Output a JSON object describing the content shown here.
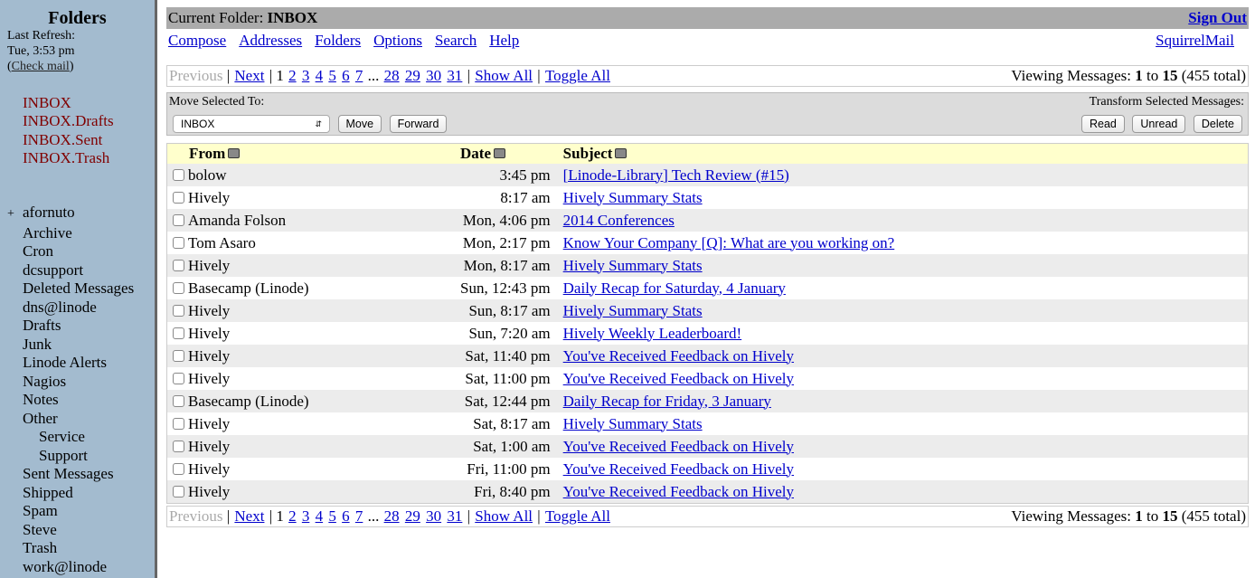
{
  "sidebar": {
    "title": "Folders",
    "last_refresh_label": "Last Refresh:",
    "last_refresh": "Tue, 3:53 pm",
    "check_mail": "Check mail",
    "special": [
      "INBOX",
      "INBOX.Drafts",
      "INBOX.Sent",
      "INBOX.Trash"
    ],
    "expander": "+",
    "folders": [
      {
        "label": "afornuto",
        "level": 0
      },
      {
        "label": "Archive",
        "level": 1
      },
      {
        "label": "Cron",
        "level": 1
      },
      {
        "label": "dcsupport",
        "level": 1
      },
      {
        "label": "Deleted Messages",
        "level": 1
      },
      {
        "label": "dns@linode",
        "level": 1
      },
      {
        "label": "Drafts",
        "level": 1
      },
      {
        "label": "Junk",
        "level": 1
      },
      {
        "label": "Linode Alerts",
        "level": 1
      },
      {
        "label": "Nagios",
        "level": 1
      },
      {
        "label": "Notes",
        "level": 1
      },
      {
        "label": "Other",
        "level": 1
      },
      {
        "label": "Service",
        "level": 2
      },
      {
        "label": "Support",
        "level": 2
      },
      {
        "label": "Sent Messages",
        "level": 1
      },
      {
        "label": "Shipped",
        "level": 1
      },
      {
        "label": "Spam",
        "level": 1
      },
      {
        "label": "Steve",
        "level": 1
      },
      {
        "label": "Trash",
        "level": 1
      },
      {
        "label": "work@linode",
        "level": 1
      }
    ]
  },
  "header": {
    "current_label": "Current Folder:",
    "current": "INBOX",
    "sign_out": "Sign Out",
    "brand": "SquirrelMail",
    "nav": [
      "Compose",
      "Addresses",
      "Folders",
      "Options",
      "Search",
      "Help"
    ]
  },
  "paging": {
    "previous": "Previous",
    "next": "Next",
    "current": "1",
    "pages": [
      "2",
      "3",
      "4",
      "5",
      "6",
      "7"
    ],
    "ellipsis": "...",
    "tail": [
      "28",
      "29",
      "30",
      "31"
    ],
    "show_all": "Show All",
    "toggle_all": "Toggle All",
    "viewing_label": "Viewing Messages:",
    "from": "1",
    "to_label": "to",
    "to": "15",
    "total": "(455 total)"
  },
  "tools": {
    "move_label": "Move Selected To:",
    "move_target": "INBOX",
    "move": "Move",
    "forward": "Forward",
    "transform_label": "Transform Selected Messages:",
    "read": "Read",
    "unread": "Unread",
    "delete": "Delete"
  },
  "columns": {
    "from": "From",
    "date": "Date",
    "subject": "Subject"
  },
  "messages": [
    {
      "from": "bolow",
      "date": "3:45 pm",
      "subject": "[Linode-Library] Tech Review (#15)"
    },
    {
      "from": "Hively",
      "date": "8:17 am",
      "subject": "Hively Summary Stats"
    },
    {
      "from": "Amanda Folson",
      "date": "Mon, 4:06 pm",
      "subject": "2014 Conferences"
    },
    {
      "from": "Tom Asaro",
      "date": "Mon, 2:17 pm",
      "subject": "Know Your Company [Q]: What are you working on?"
    },
    {
      "from": "Hively",
      "date": "Mon, 8:17 am",
      "subject": "Hively Summary Stats"
    },
    {
      "from": "Basecamp (Linode)",
      "date": "Sun, 12:43 pm",
      "subject": "Daily Recap for Saturday, 4 January"
    },
    {
      "from": "Hively",
      "date": "Sun, 8:17 am",
      "subject": "Hively Summary Stats"
    },
    {
      "from": "Hively",
      "date": "Sun, 7:20 am",
      "subject": "Hively Weekly Leaderboard!"
    },
    {
      "from": "Hively",
      "date": "Sat, 11:40 pm",
      "subject": "You've Received Feedback on Hively"
    },
    {
      "from": "Hively",
      "date": "Sat, 11:00 pm",
      "subject": "You've Received Feedback on Hively"
    },
    {
      "from": "Basecamp (Linode)",
      "date": "Sat, 12:44 pm",
      "subject": "Daily Recap for Friday, 3 January"
    },
    {
      "from": "Hively",
      "date": "Sat, 8:17 am",
      "subject": "Hively Summary Stats"
    },
    {
      "from": "Hively",
      "date": "Sat, 1:00 am",
      "subject": "You've Received Feedback on Hively"
    },
    {
      "from": "Hively",
      "date": "Fri, 11:00 pm",
      "subject": "You've Received Feedback on Hively"
    },
    {
      "from": "Hively",
      "date": "Fri, 8:40 pm",
      "subject": "You've Received Feedback on Hively"
    }
  ]
}
